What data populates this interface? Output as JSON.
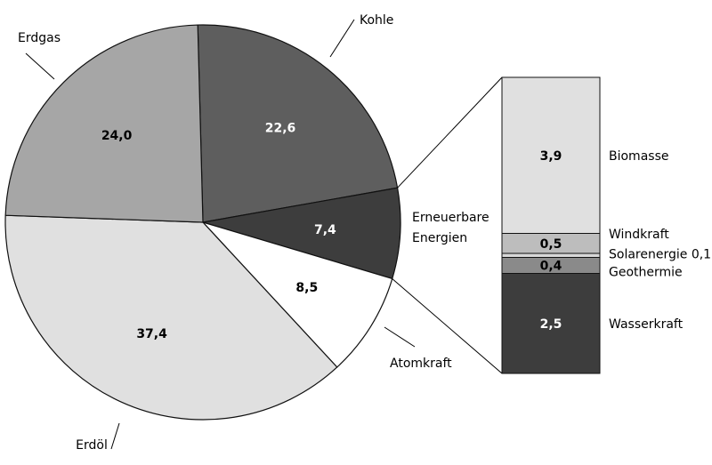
{
  "chart_data": [
    {
      "type": "pie",
      "title": "",
      "unit": "%",
      "slices": [
        {
          "label": "Kohle",
          "value": 22.6,
          "value_label": "22,6",
          "color": "#5e5e5e"
        },
        {
          "label": "Erneuerbare Energien",
          "value": 7.4,
          "value_label": "7,4",
          "color": "#3d3d3d"
        },
        {
          "label": "Atomkraft",
          "value": 8.5,
          "value_label": "8,5",
          "color": "#ffffff"
        },
        {
          "label": "Erdöl",
          "value": 37.4,
          "value_label": "37,4",
          "color": "#e0e0e0"
        },
        {
          "label": "Erdgas",
          "value": 24.0,
          "value_label": "24,0",
          "color": "#a6a6a6"
        }
      ]
    },
    {
      "type": "bar",
      "stacked": true,
      "breakdown_of": "Erneuerbare Energien",
      "segments": [
        {
          "label": "Biomasse",
          "value": 3.9,
          "value_label": "3,9",
          "color": "#e0e0e0"
        },
        {
          "label": "Windkraft",
          "value": 0.5,
          "value_label": "0,5",
          "color": "#bdbdbd"
        },
        {
          "label": "Solarenergie 0,1",
          "value": 0.1,
          "value_label": "",
          "color": "#d9d9d9"
        },
        {
          "label": "Geothermie",
          "value": 0.4,
          "value_label": "0,4",
          "color": "#8a8a8a"
        },
        {
          "label": "Wasserkraft",
          "value": 2.5,
          "value_label": "2,5",
          "color": "#3d3d3d"
        }
      ]
    }
  ]
}
